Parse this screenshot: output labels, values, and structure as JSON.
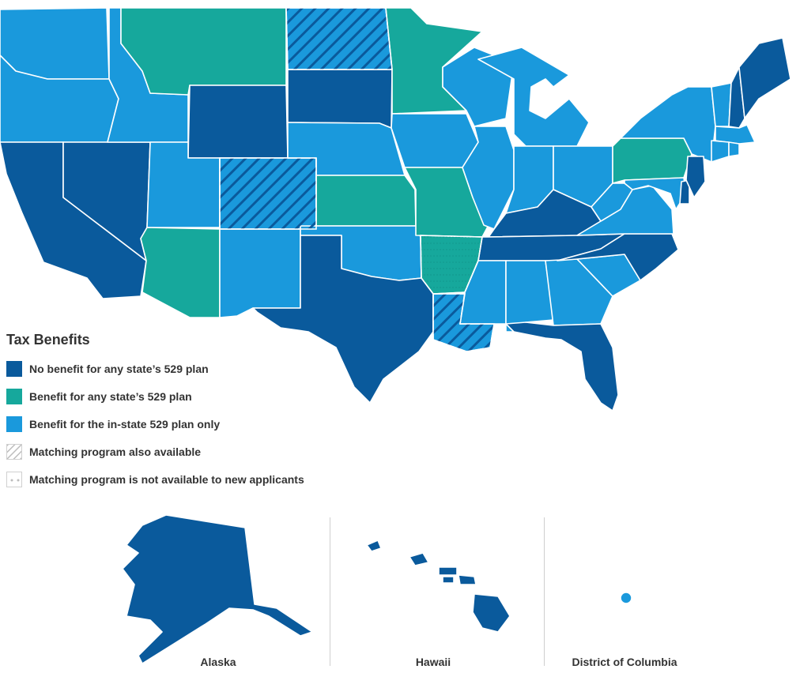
{
  "legend": {
    "title": "Tax Benefits",
    "items": [
      {
        "label": "No benefit for any state’s 529 plan",
        "color": "#0a5a9c",
        "pattern": "solid"
      },
      {
        "label": "Benefit for any state’s 529 plan",
        "color": "#16a89c",
        "pattern": "solid"
      },
      {
        "label": "Benefit for the in-state 529 plan only",
        "color": "#1a99dc",
        "pattern": "solid"
      },
      {
        "label": "Matching program also available",
        "color": "#bdbdbd",
        "pattern": "hatch"
      },
      {
        "label": "Matching program is not available to new applicants",
        "color": "#bdbdbd",
        "pattern": "dots"
      }
    ]
  },
  "insets": {
    "alaska": "Alaska",
    "hawaii": "Hawaii",
    "dc": "District of Columbia"
  },
  "colors": {
    "no_benefit": "#0a5a9c",
    "any_state": "#16a89c",
    "in_state": "#1a99dc",
    "border": "#ffffff"
  },
  "states": {
    "WA": "in_state",
    "OR": "in_state",
    "CA": "no_benefit",
    "NV": "no_benefit",
    "ID": "in_state",
    "MT": "any_state",
    "WY": "no_benefit",
    "UT": "in_state",
    "AZ": "any_state",
    "CO": "in_state",
    "NM": "in_state",
    "ND": "in_state",
    "SD": "no_benefit",
    "NE": "in_state",
    "KS": "any_state",
    "OK": "in_state",
    "TX": "no_benefit",
    "MN": "any_state",
    "IA": "in_state",
    "MO": "any_state",
    "AR": "any_state",
    "LA": "in_state",
    "WI": "in_state",
    "IL": "in_state",
    "MI": "in_state",
    "IN": "in_state",
    "OH": "in_state",
    "KY": "no_benefit",
    "TN": "no_benefit",
    "MS": "in_state",
    "AL": "in_state",
    "GA": "in_state",
    "FL": "no_benefit",
    "SC": "in_state",
    "NC": "no_benefit",
    "VA": "in_state",
    "WV": "in_state",
    "PA": "any_state",
    "NY": "in_state",
    "VT": "in_state",
    "NH": "no_benefit",
    "ME": "no_benefit",
    "MA": "in_state",
    "CT": "in_state",
    "RI": "in_state",
    "NJ": "no_benefit",
    "DE": "no_benefit",
    "MD": "in_state",
    "AK": "no_benefit",
    "HI": "no_benefit",
    "DC": "in_state"
  },
  "matching_program": [
    "ND",
    "CO",
    "LA"
  ],
  "matching_closed": [
    "AR"
  ]
}
